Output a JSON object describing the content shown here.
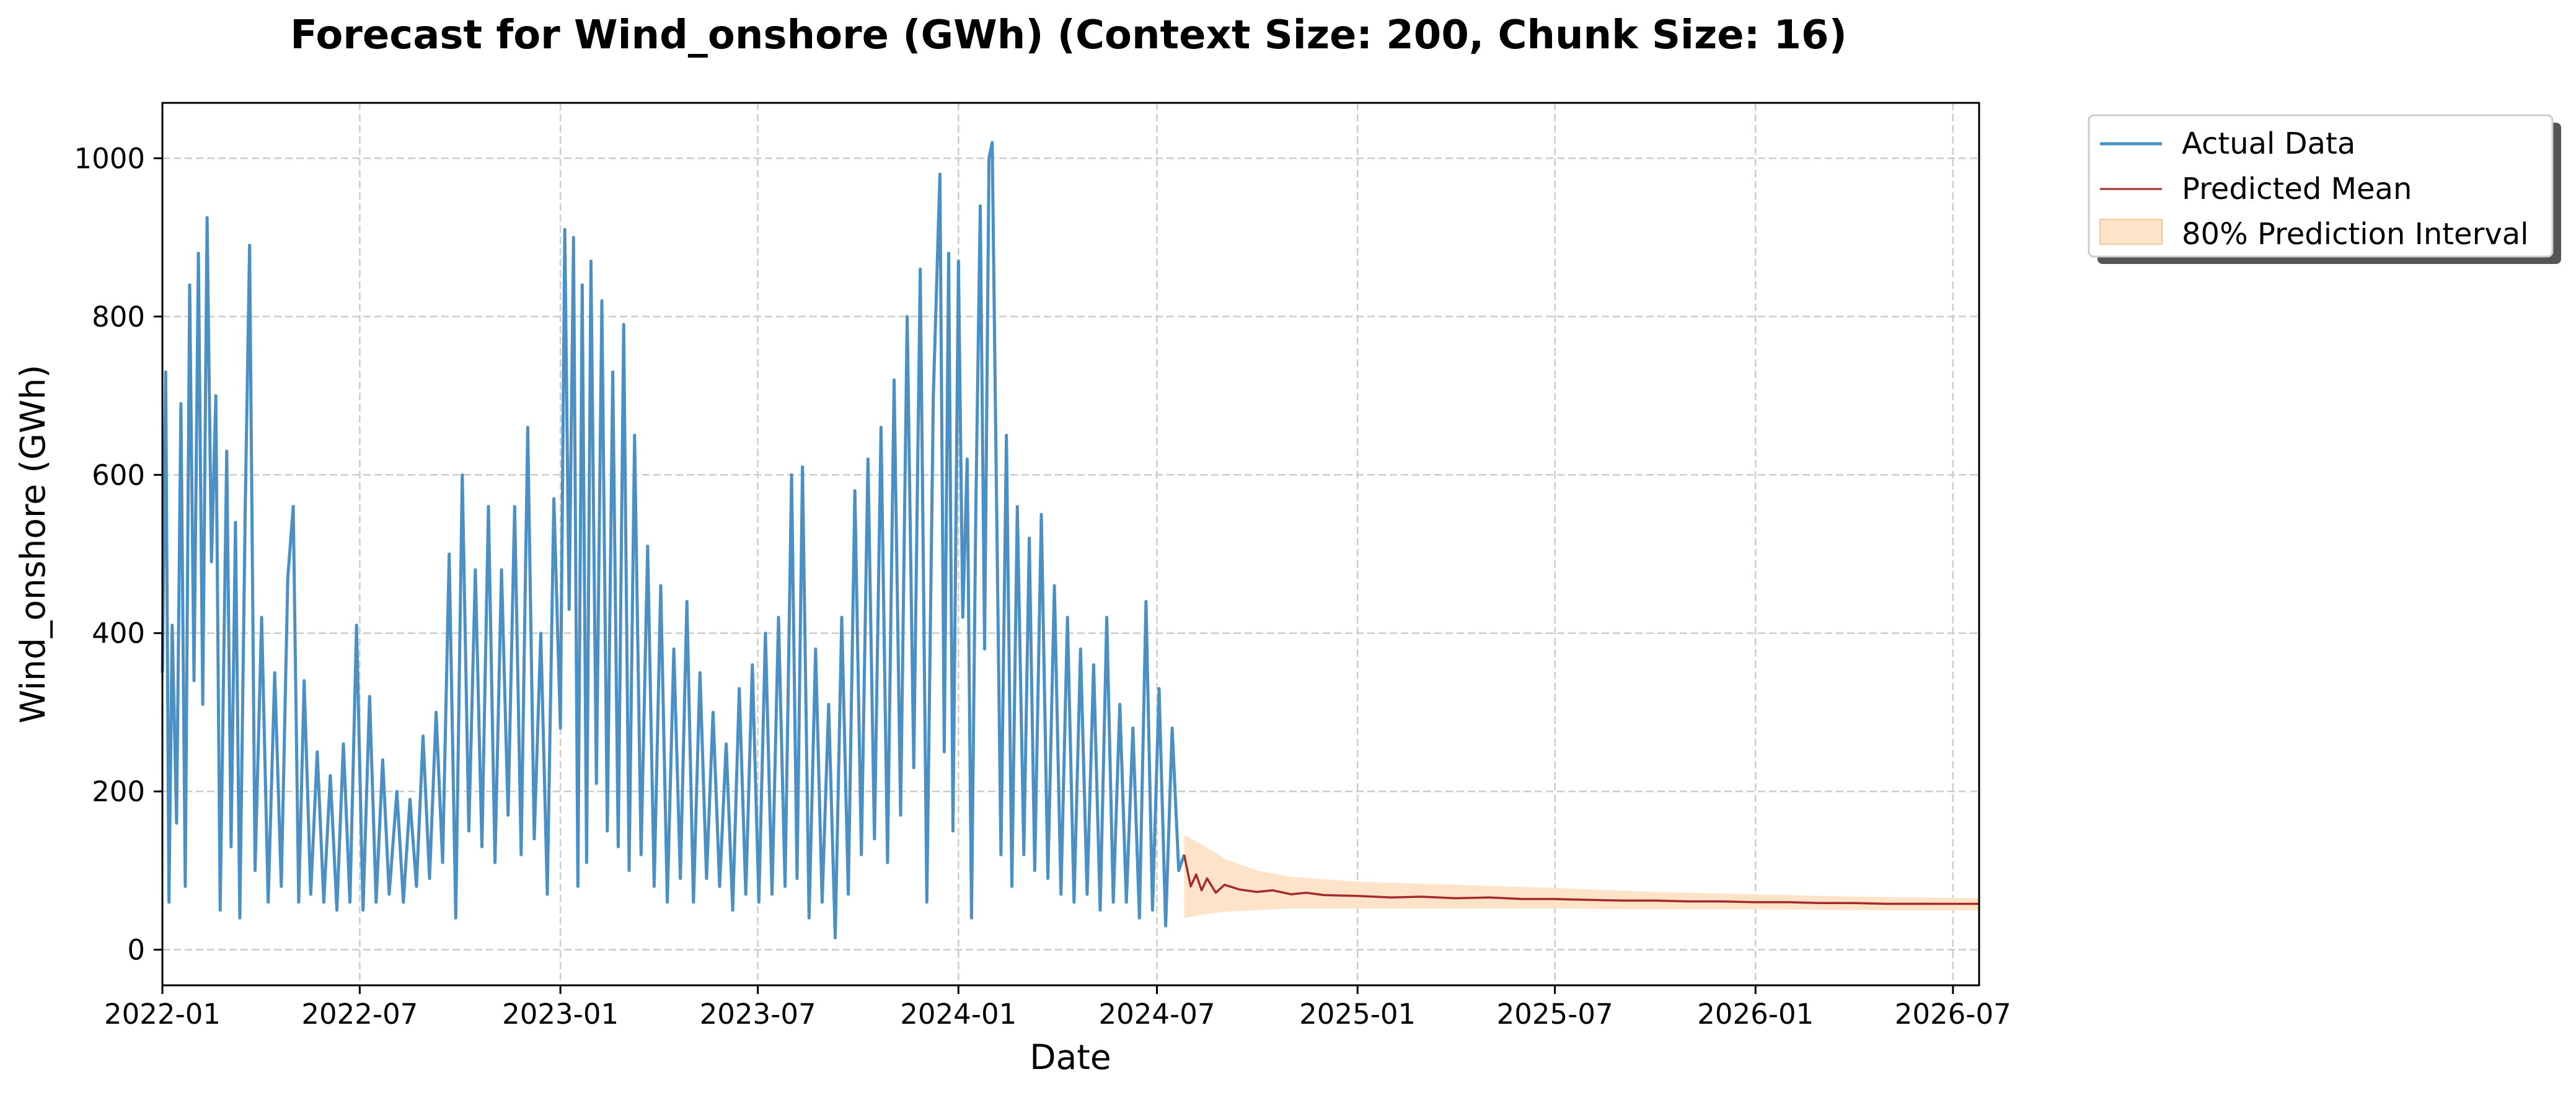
{
  "chart_data": {
    "type": "line",
    "title": "Forecast for Wind_onshore (GWh) (Context Size: 200, Chunk Size: 16)",
    "xlabel": "Date",
    "ylabel": "Wind_onshore (GWh)",
    "x_range": [
      "2022-01-01",
      "2026-07-25"
    ],
    "ylim": [
      -45,
      1070
    ],
    "x_ticks": [
      "2022-01-01",
      "2022-07-01",
      "2023-01-01",
      "2023-07-01",
      "2024-01-01",
      "2024-07-01",
      "2025-01-01",
      "2025-07-01",
      "2026-01-01",
      "2026-07-01"
    ],
    "x_tick_labels": [
      "2022-01",
      "2022-07",
      "2023-01",
      "2023-07",
      "2024-01",
      "2024-07",
      "2025-01",
      "2025-07",
      "2026-01",
      "2026-07"
    ],
    "y_ticks": [
      0,
      200,
      400,
      600,
      800,
      1000
    ],
    "y_tick_labels": [
      "0",
      "200",
      "400",
      "600",
      "800",
      "1000"
    ],
    "grid": true,
    "legend_position": "outside-top-right",
    "colors": {
      "actual": "#4a90c4",
      "predicted": "#a52a2a",
      "interval": "#fde3c8",
      "interval_edge": "#f8c89c"
    },
    "series": [
      {
        "name": "Actual Data",
        "kind": "line",
        "points": [
          [
            "2022-01-01",
            350
          ],
          [
            "2022-01-04",
            730
          ],
          [
            "2022-01-07",
            60
          ],
          [
            "2022-01-10",
            410
          ],
          [
            "2022-01-14",
            160
          ],
          [
            "2022-01-18",
            690
          ],
          [
            "2022-01-22",
            80
          ],
          [
            "2022-01-26",
            840
          ],
          [
            "2022-01-30",
            340
          ],
          [
            "2022-02-03",
            880
          ],
          [
            "2022-02-07",
            310
          ],
          [
            "2022-02-11",
            925
          ],
          [
            "2022-02-15",
            490
          ],
          [
            "2022-02-19",
            700
          ],
          [
            "2022-02-23",
            50
          ],
          [
            "2022-03-01",
            630
          ],
          [
            "2022-03-05",
            130
          ],
          [
            "2022-03-09",
            540
          ],
          [
            "2022-03-13",
            40
          ],
          [
            "2022-03-18",
            560
          ],
          [
            "2022-03-22",
            890
          ],
          [
            "2022-03-27",
            100
          ],
          [
            "2022-04-02",
            420
          ],
          [
            "2022-04-08",
            60
          ],
          [
            "2022-04-14",
            350
          ],
          [
            "2022-04-20",
            80
          ],
          [
            "2022-04-26",
            470
          ],
          [
            "2022-05-01",
            560
          ],
          [
            "2022-05-06",
            60
          ],
          [
            "2022-05-11",
            340
          ],
          [
            "2022-05-17",
            70
          ],
          [
            "2022-05-23",
            250
          ],
          [
            "2022-05-29",
            60
          ],
          [
            "2022-06-04",
            220
          ],
          [
            "2022-06-10",
            50
          ],
          [
            "2022-06-16",
            260
          ],
          [
            "2022-06-22",
            60
          ],
          [
            "2022-06-28",
            410
          ],
          [
            "2022-07-04",
            50
          ],
          [
            "2022-07-10",
            320
          ],
          [
            "2022-07-16",
            60
          ],
          [
            "2022-07-22",
            240
          ],
          [
            "2022-07-28",
            70
          ],
          [
            "2022-08-04",
            200
          ],
          [
            "2022-08-10",
            60
          ],
          [
            "2022-08-16",
            190
          ],
          [
            "2022-08-22",
            80
          ],
          [
            "2022-08-28",
            270
          ],
          [
            "2022-09-03",
            90
          ],
          [
            "2022-09-09",
            300
          ],
          [
            "2022-09-15",
            110
          ],
          [
            "2022-09-21",
            500
          ],
          [
            "2022-09-27",
            40
          ],
          [
            "2022-10-03",
            600
          ],
          [
            "2022-10-09",
            150
          ],
          [
            "2022-10-15",
            480
          ],
          [
            "2022-10-21",
            130
          ],
          [
            "2022-10-27",
            560
          ],
          [
            "2022-11-02",
            110
          ],
          [
            "2022-11-08",
            480
          ],
          [
            "2022-11-14",
            170
          ],
          [
            "2022-11-20",
            560
          ],
          [
            "2022-11-26",
            120
          ],
          [
            "2022-12-02",
            660
          ],
          [
            "2022-12-08",
            140
          ],
          [
            "2022-12-14",
            400
          ],
          [
            "2022-12-20",
            70
          ],
          [
            "2022-12-26",
            570
          ],
          [
            "2023-01-01",
            280
          ],
          [
            "2023-01-05",
            910
          ],
          [
            "2023-01-09",
            430
          ],
          [
            "2023-01-13",
            900
          ],
          [
            "2023-01-17",
            80
          ],
          [
            "2023-01-21",
            840
          ],
          [
            "2023-01-25",
            110
          ],
          [
            "2023-01-29",
            870
          ],
          [
            "2023-02-03",
            210
          ],
          [
            "2023-02-08",
            820
          ],
          [
            "2023-02-13",
            150
          ],
          [
            "2023-02-18",
            730
          ],
          [
            "2023-02-23",
            130
          ],
          [
            "2023-02-28",
            790
          ],
          [
            "2023-03-05",
            100
          ],
          [
            "2023-03-10",
            650
          ],
          [
            "2023-03-16",
            120
          ],
          [
            "2023-03-22",
            510
          ],
          [
            "2023-03-28",
            80
          ],
          [
            "2023-04-03",
            460
          ],
          [
            "2023-04-09",
            60
          ],
          [
            "2023-04-15",
            380
          ],
          [
            "2023-04-21",
            90
          ],
          [
            "2023-04-27",
            440
          ],
          [
            "2023-05-03",
            60
          ],
          [
            "2023-05-09",
            350
          ],
          [
            "2023-05-15",
            90
          ],
          [
            "2023-05-21",
            300
          ],
          [
            "2023-05-27",
            80
          ],
          [
            "2023-06-02",
            260
          ],
          [
            "2023-06-08",
            50
          ],
          [
            "2023-06-14",
            330
          ],
          [
            "2023-06-20",
            70
          ],
          [
            "2023-06-26",
            360
          ],
          [
            "2023-07-02",
            60
          ],
          [
            "2023-07-08",
            400
          ],
          [
            "2023-07-14",
            70
          ],
          [
            "2023-07-20",
            420
          ],
          [
            "2023-07-26",
            80
          ],
          [
            "2023-08-01",
            600
          ],
          [
            "2023-08-06",
            90
          ],
          [
            "2023-08-11",
            610
          ],
          [
            "2023-08-17",
            40
          ],
          [
            "2023-08-23",
            380
          ],
          [
            "2023-08-29",
            60
          ],
          [
            "2023-09-04",
            310
          ],
          [
            "2023-09-10",
            15
          ],
          [
            "2023-09-16",
            420
          ],
          [
            "2023-09-22",
            70
          ],
          [
            "2023-09-28",
            580
          ],
          [
            "2023-10-04",
            120
          ],
          [
            "2023-10-10",
            620
          ],
          [
            "2023-10-16",
            140
          ],
          [
            "2023-10-22",
            660
          ],
          [
            "2023-10-28",
            110
          ],
          [
            "2023-11-03",
            720
          ],
          [
            "2023-11-09",
            170
          ],
          [
            "2023-11-15",
            800
          ],
          [
            "2023-11-21",
            230
          ],
          [
            "2023-11-27",
            860
          ],
          [
            "2023-12-03",
            60
          ],
          [
            "2023-12-09",
            700
          ],
          [
            "2023-12-15",
            980
          ],
          [
            "2023-12-19",
            250
          ],
          [
            "2023-12-23",
            880
          ],
          [
            "2023-12-27",
            150
          ],
          [
            "2024-01-01",
            870
          ],
          [
            "2024-01-05",
            420
          ],
          [
            "2024-01-09",
            620
          ],
          [
            "2024-01-13",
            40
          ],
          [
            "2024-01-17",
            560
          ],
          [
            "2024-01-21",
            940
          ],
          [
            "2024-01-25",
            380
          ],
          [
            "2024-01-29",
            1000
          ],
          [
            "2024-02-01",
            1020
          ],
          [
            "2024-02-05",
            560
          ],
          [
            "2024-02-09",
            120
          ],
          [
            "2024-02-14",
            650
          ],
          [
            "2024-02-19",
            80
          ],
          [
            "2024-02-24",
            560
          ],
          [
            "2024-03-01",
            120
          ],
          [
            "2024-03-06",
            520
          ],
          [
            "2024-03-11",
            100
          ],
          [
            "2024-03-17",
            550
          ],
          [
            "2024-03-23",
            90
          ],
          [
            "2024-03-29",
            460
          ],
          [
            "2024-04-04",
            70
          ],
          [
            "2024-04-10",
            420
          ],
          [
            "2024-04-16",
            60
          ],
          [
            "2024-04-22",
            380
          ],
          [
            "2024-04-28",
            70
          ],
          [
            "2024-05-04",
            360
          ],
          [
            "2024-05-10",
            50
          ],
          [
            "2024-05-16",
            420
          ],
          [
            "2024-05-22",
            60
          ],
          [
            "2024-05-28",
            310
          ],
          [
            "2024-06-03",
            60
          ],
          [
            "2024-06-09",
            280
          ],
          [
            "2024-06-15",
            40
          ],
          [
            "2024-06-21",
            440
          ],
          [
            "2024-06-27",
            50
          ],
          [
            "2024-07-03",
            330
          ],
          [
            "2024-07-09",
            30
          ],
          [
            "2024-07-15",
            280
          ],
          [
            "2024-07-21",
            100
          ],
          [
            "2024-07-26",
            120
          ]
        ]
      },
      {
        "name": "Predicted Mean",
        "kind": "line",
        "points": [
          [
            "2024-07-26",
            120
          ],
          [
            "2024-08-01",
            80
          ],
          [
            "2024-08-06",
            95
          ],
          [
            "2024-08-11",
            75
          ],
          [
            "2024-08-16",
            90
          ],
          [
            "2024-08-24",
            72
          ],
          [
            "2024-09-01",
            82
          ],
          [
            "2024-09-15",
            76
          ],
          [
            "2024-10-01",
            73
          ],
          [
            "2024-10-15",
            75
          ],
          [
            "2024-11-01",
            70
          ],
          [
            "2024-11-15",
            72
          ],
          [
            "2024-12-01",
            69
          ],
          [
            "2025-01-01",
            68
          ],
          [
            "2025-02-01",
            66
          ],
          [
            "2025-03-01",
            67
          ],
          [
            "2025-04-01",
            65
          ],
          [
            "2025-05-01",
            66
          ],
          [
            "2025-06-01",
            64
          ],
          [
            "2025-07-01",
            64
          ],
          [
            "2025-08-01",
            63
          ],
          [
            "2025-09-01",
            62
          ],
          [
            "2025-10-01",
            62
          ],
          [
            "2025-11-01",
            61
          ],
          [
            "2025-12-01",
            61
          ],
          [
            "2026-01-01",
            60
          ],
          [
            "2026-02-01",
            60
          ],
          [
            "2026-03-01",
            59
          ],
          [
            "2026-04-01",
            59
          ],
          [
            "2026-05-01",
            58
          ],
          [
            "2026-06-01",
            58
          ],
          [
            "2026-07-01",
            58
          ],
          [
            "2026-07-25",
            58
          ]
        ]
      },
      {
        "name": "80% Prediction Interval",
        "kind": "band",
        "points": [
          [
            "2024-07-26",
            40,
            145
          ],
          [
            "2024-08-15",
            45,
            130
          ],
          [
            "2024-09-01",
            48,
            115
          ],
          [
            "2024-10-01",
            50,
            100
          ],
          [
            "2024-11-01",
            52,
            92
          ],
          [
            "2025-01-01",
            52,
            86
          ],
          [
            "2025-04-01",
            52,
            82
          ],
          [
            "2025-07-01",
            52,
            78
          ],
          [
            "2025-10-01",
            51,
            73
          ],
          [
            "2026-01-01",
            51,
            70
          ],
          [
            "2026-04-01",
            50,
            67
          ],
          [
            "2026-07-25",
            50,
            65
          ]
        ]
      }
    ]
  }
}
